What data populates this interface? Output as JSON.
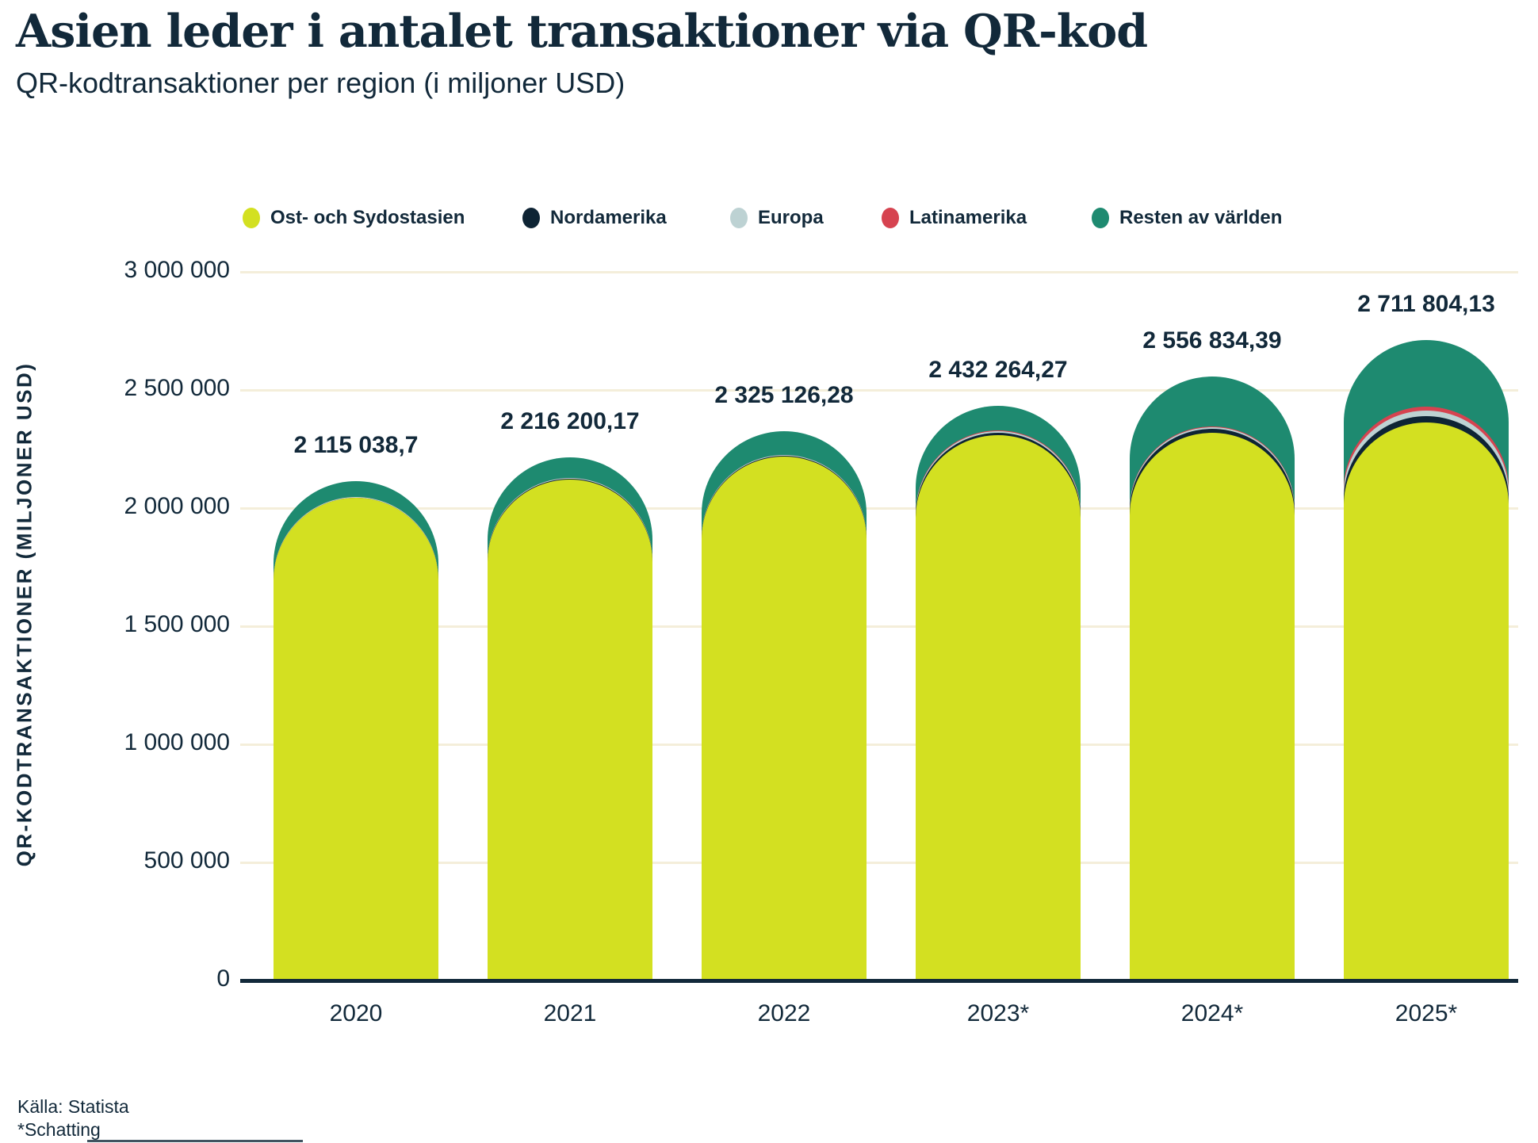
{
  "page": {
    "title": "Asien leder i antalet transaktioner via QR-kod",
    "subtitle": "QR-kodtransaktioner per region (i miljoner USD)",
    "source_line1": "Källa: Statista",
    "source_line2": "*Schatting"
  },
  "colors": {
    "text": "#12293a",
    "axis": "#12293a",
    "gridline": "#f4eeda",
    "background": "#ffffff"
  },
  "chart_data": {
    "type": "bar",
    "stacked": true,
    "title": "Asien leder i antalet transaktioner via QR-kod",
    "subtitle": "QR-kodtransaktioner per region (i miljoner USD)",
    "ylabel": "QR-KODTRANSAKTIONER (MILJONER USD)",
    "xlabel": "",
    "ylim": [
      0,
      3000000
    ],
    "grid": "horizontal",
    "legend_position": "top",
    "categories": [
      "2020",
      "2021",
      "2022",
      "2023*",
      "2024*",
      "2025*"
    ],
    "series": [
      {
        "name": "Ost- och Sydostasien",
        "color": "#d3e021",
        "values": [
          2042000,
          2122000,
          2218000,
          2310000,
          2320000,
          2363000
        ]
      },
      {
        "name": "Nordamerika",
        "color": "#0e2434",
        "values": [
          3000,
          3500,
          4500,
          10000,
          14000,
          27000
        ]
      },
      {
        "name": "Europa",
        "color": "#bdd2d3",
        "values": [
          1500,
          1800,
          2200,
          5000,
          9000,
          23000
        ]
      },
      {
        "name": "Latinamerika",
        "color": "#d64350",
        "values": [
          800,
          900,
          1100,
          2264.27,
          3000,
          17000
        ]
      },
      {
        "name": "Resten av världen",
        "color": "#1e8a70",
        "values": [
          67738.7,
          88000.17,
          99326.28,
          105000,
          210834.39,
          281804.13
        ]
      }
    ],
    "totals": [
      2115038.7,
      2216200.17,
      2325126.28,
      2432264.27,
      2556834.39,
      2711804.13
    ],
    "total_labels": [
      "2 115 038,7",
      "2 216 200,17",
      "2 325 126,28",
      "2 432 264,27",
      "2 556 834,39",
      "2 711 804,13"
    ],
    "y_ticks": [
      {
        "value": 0,
        "label": "0"
      },
      {
        "value": 500000,
        "label": "500 000"
      },
      {
        "value": 1000000,
        "label": "1 000 000"
      },
      {
        "value": 1500000,
        "label": "1 500 000"
      },
      {
        "value": 2000000,
        "label": "2 000 000"
      },
      {
        "value": 2500000,
        "label": "2 500 000"
      },
      {
        "value": 3000000,
        "label": "3 000 000"
      }
    ]
  }
}
